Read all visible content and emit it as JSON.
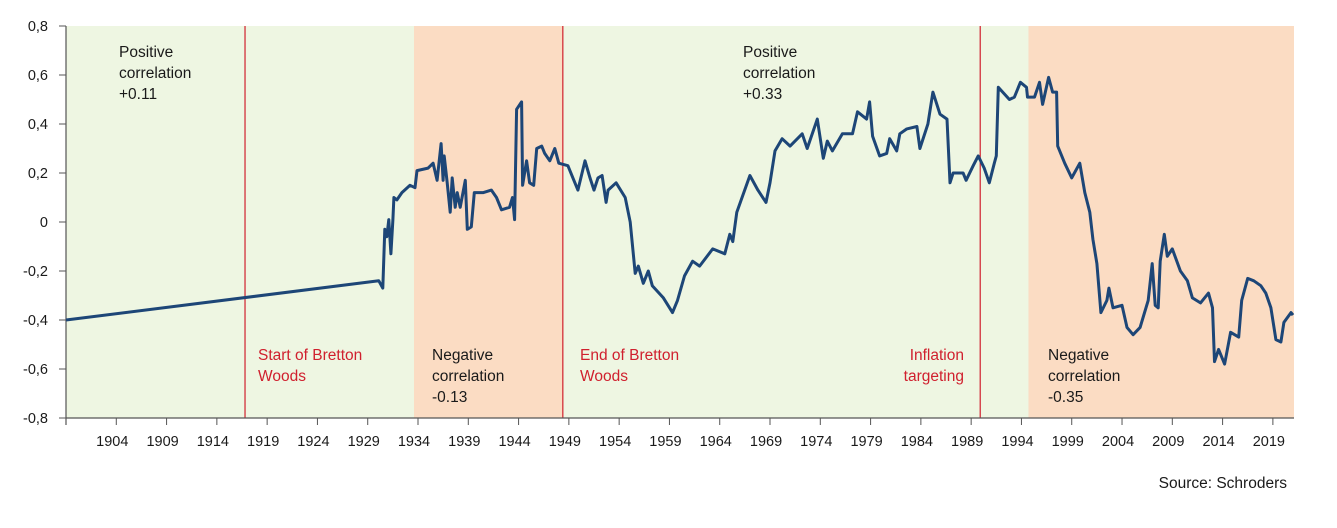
{
  "chart_data": {
    "type": "line",
    "title": "",
    "xlabel": "",
    "ylabel": "",
    "xlim": [
      1899,
      2021.1
    ],
    "ylim": [
      -0.8,
      0.8
    ],
    "grid": false,
    "legend": "none",
    "y_ticks": [
      0.8,
      0.6,
      0.4,
      0.2,
      0,
      -0.2,
      -0.4,
      -0.6,
      -0.8
    ],
    "y_tick_labels": [
      "0,8",
      "0,6",
      "0,4",
      "0,2",
      "0",
      "-0,2",
      "-0,4",
      "-0,6",
      "-0,8"
    ],
    "x_ticks": [
      1904,
      1909,
      1914,
      1919,
      1924,
      1929,
      1934,
      1939,
      1944,
      1949,
      1954,
      1959,
      1964,
      1969,
      1974,
      1979,
      1984,
      1989,
      1994,
      1999,
      2004,
      2009,
      2014,
      2019
    ],
    "x_tick_labels": [
      "1904",
      "1909",
      "1914",
      "1919",
      "1924",
      "1929",
      "1934",
      "1939",
      "1944",
      "1949",
      "1954",
      "1959",
      "1964",
      "1969",
      "1974",
      "1979",
      "1984",
      "1989",
      "1994",
      "1999",
      "2004",
      "2009",
      "2014",
      "2019"
    ],
    "colors": {
      "line": "#1d4677",
      "positive_band": "#eef6e2",
      "negative_band": "#fbdcc3",
      "event_line": "#d0202e",
      "axis": "#555555"
    },
    "bands": [
      {
        "from": 1899,
        "to": 1933.6,
        "kind": "positive"
      },
      {
        "from": 1933.6,
        "to": 1948.4,
        "kind": "negative"
      },
      {
        "from": 1948.4,
        "to": 1994.7,
        "kind": "positive"
      },
      {
        "from": 1994.7,
        "to": 2021.1,
        "kind": "negative"
      }
    ],
    "event_lines": [
      1916.8,
      1948.4,
      1989.9
    ],
    "series": [
      {
        "x": [
          1899.0,
          1930.1,
          1930.5,
          1930.7,
          1930.9,
          1931.1,
          1931.3,
          1931.5,
          1931.6,
          1931.9,
          1932.4,
          1933.2,
          1933.7,
          1933.9,
          1935.0,
          1935.5,
          1935.9,
          1936.3,
          1936.5,
          1936.6,
          1936.9,
          1937.2,
          1937.4,
          1937.7,
          1937.9,
          1938.2,
          1938.7,
          1938.9,
          1939.3,
          1939.6,
          1940.5,
          1941.3,
          1941.8,
          1942.3,
          1943.1,
          1943.4,
          1943.6,
          1943.8,
          1944.3,
          1944.4,
          1944.8,
          1945.1,
          1945.5,
          1945.8,
          1946.3,
          1946.6,
          1947.1,
          1947.6,
          1948.0,
          1948.9,
          1949.4,
          1949.9,
          1950.6,
          1951.1,
          1951.5,
          1951.9,
          1952.3,
          1952.7,
          1952.9,
          1953.7,
          1954.6,
          1955.1,
          1955.6,
          1955.9,
          1956.4,
          1956.9,
          1957.3,
          1958.4,
          1959.3,
          1959.8,
          1960.5,
          1961.3,
          1962.0,
          1963.3,
          1964.5,
          1965.0,
          1965.3,
          1965.7,
          1966.3,
          1967.0,
          1967.8,
          1968.6,
          1969.0,
          1969.5,
          1970.2,
          1971.0,
          1972.2,
          1972.7,
          1973.7,
          1974.3,
          1974.7,
          1975.2,
          1976.2,
          1977.2,
          1977.7,
          1978.6,
          1978.9,
          1979.2,
          1979.9,
          1980.6,
          1980.9,
          1981.6,
          1981.9,
          1982.6,
          1983.6,
          1983.9,
          1984.7,
          1985.2,
          1985.9,
          1986.6,
          1986.9,
          1987.2,
          1988.2,
          1988.5,
          1989.2,
          1989.7,
          1990.3,
          1990.8,
          1991.3,
          1991.5,
          1991.7,
          1992.8,
          1993.3,
          1993.9,
          1994.5,
          1994.6,
          1995.3,
          1995.8,
          1996.1,
          1996.7,
          1997.1,
          1997.5,
          1997.6,
          1998.3,
          1999.0,
          1999.8,
          2000.3,
          2000.8,
          2001.1,
          2001.5,
          2001.9,
          2002.5,
          2002.7,
          2003.1,
          2004.0,
          2004.5,
          2005.1,
          2005.8,
          2006.6,
          2007.0,
          2007.3,
          2007.6,
          2007.8,
          2008.2,
          2008.5,
          2009.0,
          2009.8,
          2010.5,
          2011.0,
          2011.8,
          2012.6,
          2013.0,
          2013.2,
          2013.6,
          2014.2,
          2014.8,
          2015.6,
          2015.9,
          2016.5,
          2017.1,
          2017.8,
          2018.3,
          2018.8,
          2019.3,
          2019.8,
          2020.1,
          2020.8,
          2021.0
        ],
        "y": [
          -0.4,
          -0.24,
          -0.27,
          -0.03,
          -0.06,
          0.01,
          -0.13,
          0.01,
          0.1,
          0.09,
          0.12,
          0.15,
          0.14,
          0.21,
          0.22,
          0.24,
          0.17,
          0.32,
          0.17,
          0.27,
          0.16,
          0.04,
          0.18,
          0.06,
          0.12,
          0.06,
          0.17,
          -0.03,
          -0.02,
          0.12,
          0.12,
          0.13,
          0.1,
          0.05,
          0.06,
          0.1,
          0.01,
          0.46,
          0.49,
          0.15,
          0.25,
          0.16,
          0.15,
          0.3,
          0.31,
          0.28,
          0.25,
          0.3,
          0.24,
          0.23,
          0.18,
          0.13,
          0.25,
          0.18,
          0.13,
          0.18,
          0.19,
          0.08,
          0.13,
          0.16,
          0.1,
          0.0,
          -0.21,
          -0.18,
          -0.25,
          -0.2,
          -0.26,
          -0.31,
          -0.37,
          -0.32,
          -0.22,
          -0.16,
          -0.18,
          -0.11,
          -0.13,
          -0.05,
          -0.08,
          0.04,
          0.11,
          0.19,
          0.13,
          0.08,
          0.16,
          0.29,
          0.34,
          0.31,
          0.36,
          0.3,
          0.42,
          0.26,
          0.33,
          0.29,
          0.36,
          0.36,
          0.45,
          0.42,
          0.49,
          0.35,
          0.27,
          0.28,
          0.34,
          0.29,
          0.36,
          0.38,
          0.39,
          0.3,
          0.4,
          0.53,
          0.44,
          0.42,
          0.16,
          0.2,
          0.2,
          0.17,
          0.23,
          0.27,
          0.22,
          0.16,
          0.24,
          0.27,
          0.55,
          0.5,
          0.51,
          0.57,
          0.55,
          0.51,
          0.51,
          0.57,
          0.48,
          0.59,
          0.53,
          0.53,
          0.31,
          0.24,
          0.18,
          0.24,
          0.12,
          0.04,
          -0.07,
          -0.17,
          -0.37,
          -0.32,
          -0.27,
          -0.35,
          -0.34,
          -0.43,
          -0.46,
          -0.43,
          -0.32,
          -0.17,
          -0.34,
          -0.35,
          -0.16,
          -0.05,
          -0.14,
          -0.11,
          -0.2,
          -0.24,
          -0.31,
          -0.33,
          -0.29,
          -0.35,
          -0.57,
          -0.52,
          -0.58,
          -0.45,
          -0.47,
          -0.32,
          -0.23,
          -0.24,
          -0.26,
          -0.29,
          -0.35,
          -0.48,
          -0.49,
          -0.41,
          -0.37,
          -0.38
        ]
      }
    ],
    "annotations": {
      "band1": [
        "Positive",
        "correlation",
        "+0.11"
      ],
      "start_bretton_woods": [
        "Start of Bretton",
        "Woods"
      ],
      "band2": [
        "Negative",
        "correlation",
        "-0.13"
      ],
      "end_bretton_woods": [
        "End of Bretton",
        "Woods"
      ],
      "band3": [
        "Positive",
        "correlation",
        "+0.33"
      ],
      "inflation_targeting": [
        "Inflation",
        "targeting"
      ],
      "band4": [
        "Negative",
        "correlation",
        "-0.35"
      ]
    }
  },
  "source": "Source: Schroders"
}
